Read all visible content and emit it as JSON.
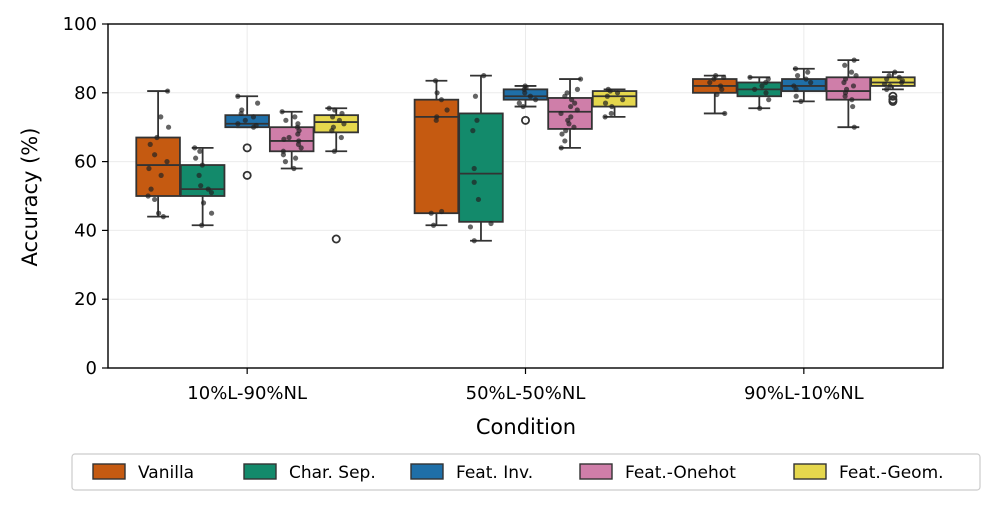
{
  "chart_data": {
    "type": "box",
    "xlabel": "Condition",
    "ylabel": "Accuracy (%)",
    "ylim": [
      0,
      100
    ],
    "yticks": [
      0,
      20,
      40,
      60,
      80,
      100
    ],
    "grid": true,
    "legend_position": "bottom",
    "categories": [
      "10%L-90%NL",
      "50%L-50%NL",
      "90%L-10%NL"
    ],
    "series": [
      {
        "name": "Vanilla",
        "color": "#c55a11",
        "boxes": [
          {
            "whislo": 44,
            "q1": 50,
            "med": 59,
            "q3": 67,
            "whishi": 80.5,
            "fliers": [],
            "points": [
              44,
              45,
              49,
              50,
              52,
              56,
              58,
              60,
              62,
              65,
              67,
              70,
              73,
              80.5
            ]
          },
          {
            "whislo": 41.5,
            "q1": 45,
            "med": 73,
            "q3": 78,
            "whishi": 83.5,
            "fliers": [],
            "points": [
              41.5,
              45,
              45.5,
              72,
              73,
              75,
              78,
              80,
              83.5
            ]
          },
          {
            "whislo": 74,
            "q1": 80,
            "med": 82,
            "q3": 84,
            "whishi": 85,
            "fliers": [],
            "points": [
              74,
              79.5,
              81,
              82,
              83,
              84,
              84.5,
              85
            ]
          }
        ]
      },
      {
        "name": "Char. Sep.",
        "color": "#138a6b",
        "boxes": [
          {
            "whislo": 41.5,
            "q1": 50,
            "med": 52,
            "q3": 59,
            "whishi": 64,
            "fliers": [],
            "points": [
              41.5,
              45,
              48,
              51,
              52,
              53,
              56,
              59,
              61,
              63,
              64
            ]
          },
          {
            "whislo": 37,
            "q1": 42.5,
            "med": 56.5,
            "q3": 74,
            "whishi": 85,
            "fliers": [],
            "points": [
              37,
              41,
              42,
              49,
              54,
              58,
              69,
              72,
              79,
              85
            ]
          },
          {
            "whislo": 75.5,
            "q1": 79,
            "med": 81,
            "q3": 83,
            "whishi": 84.5,
            "fliers": [],
            "points": [
              75.5,
              78,
              80,
              81,
              82,
              83,
              84,
              84.5
            ]
          }
        ]
      },
      {
        "name": "Feat. Inv.",
        "color": "#1f6fa8",
        "boxes": [
          {
            "whislo": 70,
            "q1": 70,
            "med": 71,
            "q3": 73.5,
            "whishi": 79,
            "fliers": [
              56,
              64
            ],
            "points": [
              70,
              70.5,
              71,
              72,
              73,
              74,
              75,
              77,
              79
            ]
          },
          {
            "whislo": 76,
            "q1": 78,
            "med": 79,
            "q3": 81,
            "whishi": 82,
            "fliers": [
              72
            ],
            "points": [
              76,
              77,
              78,
              79,
              80,
              81,
              81.5,
              82
            ]
          },
          {
            "whislo": 77.5,
            "q1": 80.5,
            "med": 82,
            "q3": 84,
            "whishi": 87,
            "fliers": [],
            "points": [
              77.5,
              79,
              81,
              82,
              83,
              84,
              85,
              86,
              87
            ]
          }
        ]
      },
      {
        "name": "Feat.-Onehot",
        "color": "#cf7ea9",
        "boxes": [
          {
            "whislo": 58,
            "q1": 63,
            "med": 66,
            "q3": 70,
            "whishi": 74.5,
            "fliers": [],
            "points": [
              58,
              60,
              61,
              62,
              63,
              64,
              65,
              66,
              66.5,
              67,
              68,
              69,
              70,
              71,
              72,
              73,
              74.5
            ]
          },
          {
            "whislo": 64,
            "q1": 69.5,
            "med": 74.5,
            "q3": 78.5,
            "whishi": 84,
            "fliers": [],
            "points": [
              64,
              66,
              68,
              69,
              70,
              71,
              72,
              73,
              74,
              75,
              76,
              77,
              78,
              79,
              80,
              81,
              84
            ]
          },
          {
            "whislo": 70,
            "q1": 78,
            "med": 80.5,
            "q3": 84.5,
            "whishi": 89.5,
            "fliers": [],
            "points": [
              70,
              76,
              78,
              79,
              80,
              81,
              82,
              83,
              84,
              85,
              86,
              88,
              89.5
            ]
          }
        ]
      },
      {
        "name": "Feat.-Geom.",
        "color": "#e5d74d",
        "boxes": [
          {
            "whislo": 63,
            "q1": 68.5,
            "med": 71.5,
            "q3": 73.5,
            "whishi": 75.5,
            "fliers": [
              37.5
            ],
            "points": [
              63,
              67,
              69,
              70,
              71,
              72,
              73,
              74,
              75,
              75.5
            ]
          },
          {
            "whislo": 73,
            "q1": 76,
            "med": 79,
            "q3": 80.5,
            "whishi": 81,
            "fliers": [],
            "points": [
              73,
              74,
              76,
              77,
              78,
              79,
              80,
              80.5,
              81
            ]
          },
          {
            "whislo": 81,
            "q1": 82,
            "med": 83,
            "q3": 84.5,
            "whishi": 86,
            "fliers": [
              77.5,
              78,
              79
            ],
            "points": [
              81,
              82,
              82.5,
              83,
              83.5,
              84,
              84.5,
              85,
              86
            ]
          }
        ]
      }
    ]
  }
}
